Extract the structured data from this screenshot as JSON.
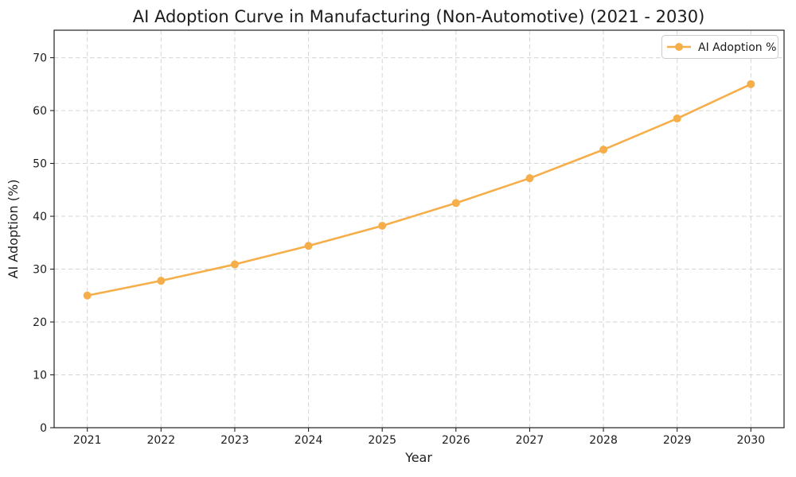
{
  "chart_data": {
    "type": "line",
    "title": "AI Adoption Curve in Manufacturing (Non-Automotive) (2021 - 2030)",
    "xlabel": "Year",
    "ylabel": "AI Adoption (%)",
    "categories": [
      2021,
      2022,
      2023,
      2024,
      2025,
      2026,
      2027,
      2028,
      2029,
      2030
    ],
    "series": [
      {
        "name": "AI Adoption %",
        "values": [
          25.0,
          27.8,
          30.9,
          34.4,
          38.2,
          42.5,
          47.2,
          52.6,
          58.5,
          65.0
        ],
        "color": "#F5AE4A",
        "marker": "circle"
      }
    ],
    "yticks": [
      0,
      10,
      20,
      30,
      40,
      50,
      60,
      70
    ],
    "ylim": [
      0,
      75.2
    ],
    "grid": "dashed-both-axes",
    "grid_color": "#d5d5d5",
    "axis_color": "#222222",
    "legend_position": "upper-right"
  }
}
